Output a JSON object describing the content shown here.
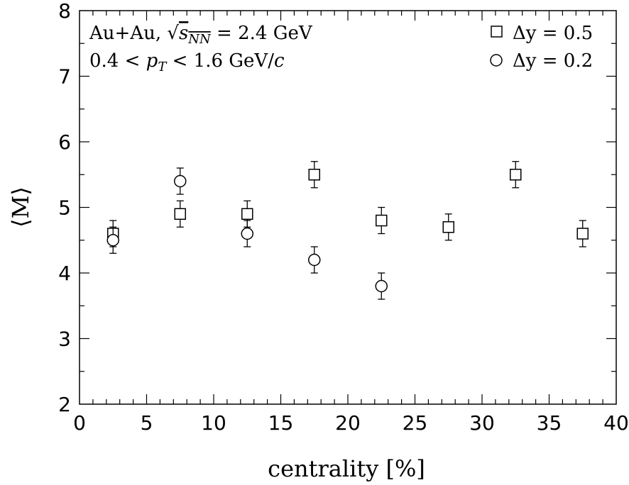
{
  "chart_data": {
    "type": "scatter",
    "xlabel": "centrality [%]",
    "ylabel": "⟨M⟩",
    "xlim": [
      0,
      40
    ],
    "ylim": [
      2,
      8
    ],
    "xticks": [
      "0",
      "5",
      "10",
      "15",
      "20",
      "25",
      "30",
      "35",
      "40"
    ],
    "yticks": [
      "2",
      "3",
      "4",
      "5",
      "6",
      "7",
      "8"
    ],
    "annotations": [
      "Au+Au, √s_NN = 2.4 GeV",
      "0.4 < p_T < 1.6 GeV/c"
    ],
    "legend_position": "top-right",
    "series": [
      {
        "name": "Δy = 0.5",
        "marker": "square",
        "x": [
          2.5,
          7.5,
          12.5,
          17.5,
          22.5,
          27.5,
          32.5,
          37.5
        ],
        "y": [
          4.6,
          4.9,
          4.9,
          5.5,
          4.8,
          4.7,
          5.5,
          4.6
        ],
        "err": [
          0.2,
          0.2,
          0.2,
          0.2,
          0.2,
          0.2,
          0.2,
          0.2
        ]
      },
      {
        "name": "Δy = 0.2",
        "marker": "circle",
        "x": [
          2.5,
          7.5,
          12.5,
          17.5,
          22.5
        ],
        "y": [
          4.5,
          5.4,
          4.6,
          4.2,
          3.8
        ],
        "err": [
          0.2,
          0.2,
          0.2,
          0.2,
          0.2
        ]
      }
    ]
  }
}
